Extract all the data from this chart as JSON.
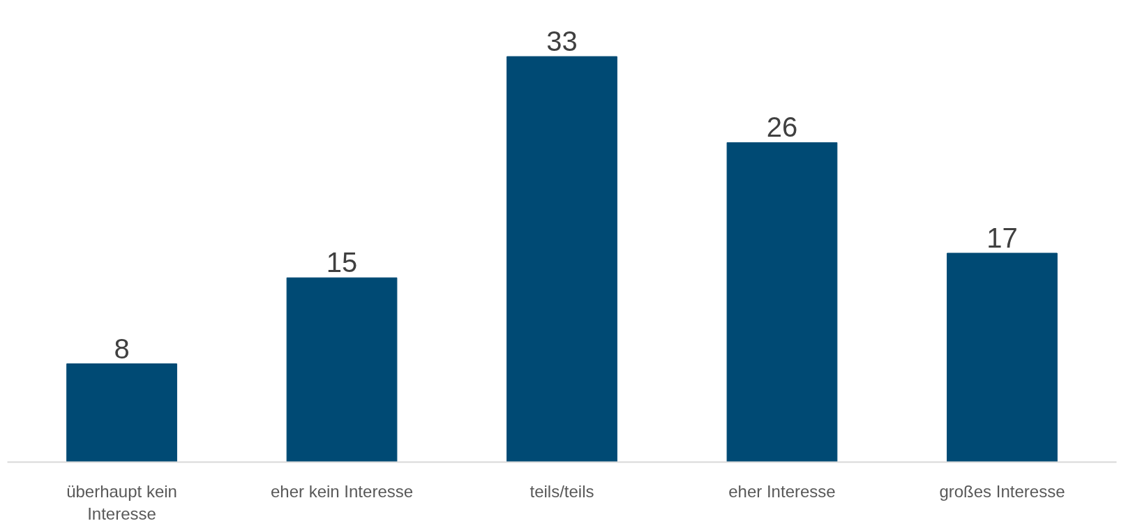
{
  "chart_data": {
    "type": "bar",
    "categories": [
      "überhaupt kein Interesse",
      "eher kein Interesse",
      "teils/teils",
      "eher Interesse",
      "großes Interesse"
    ],
    "values": [
      8,
      15,
      33,
      26,
      17
    ],
    "color": "#004a74",
    "data_labels": true,
    "tick_labels": "x"
  }
}
